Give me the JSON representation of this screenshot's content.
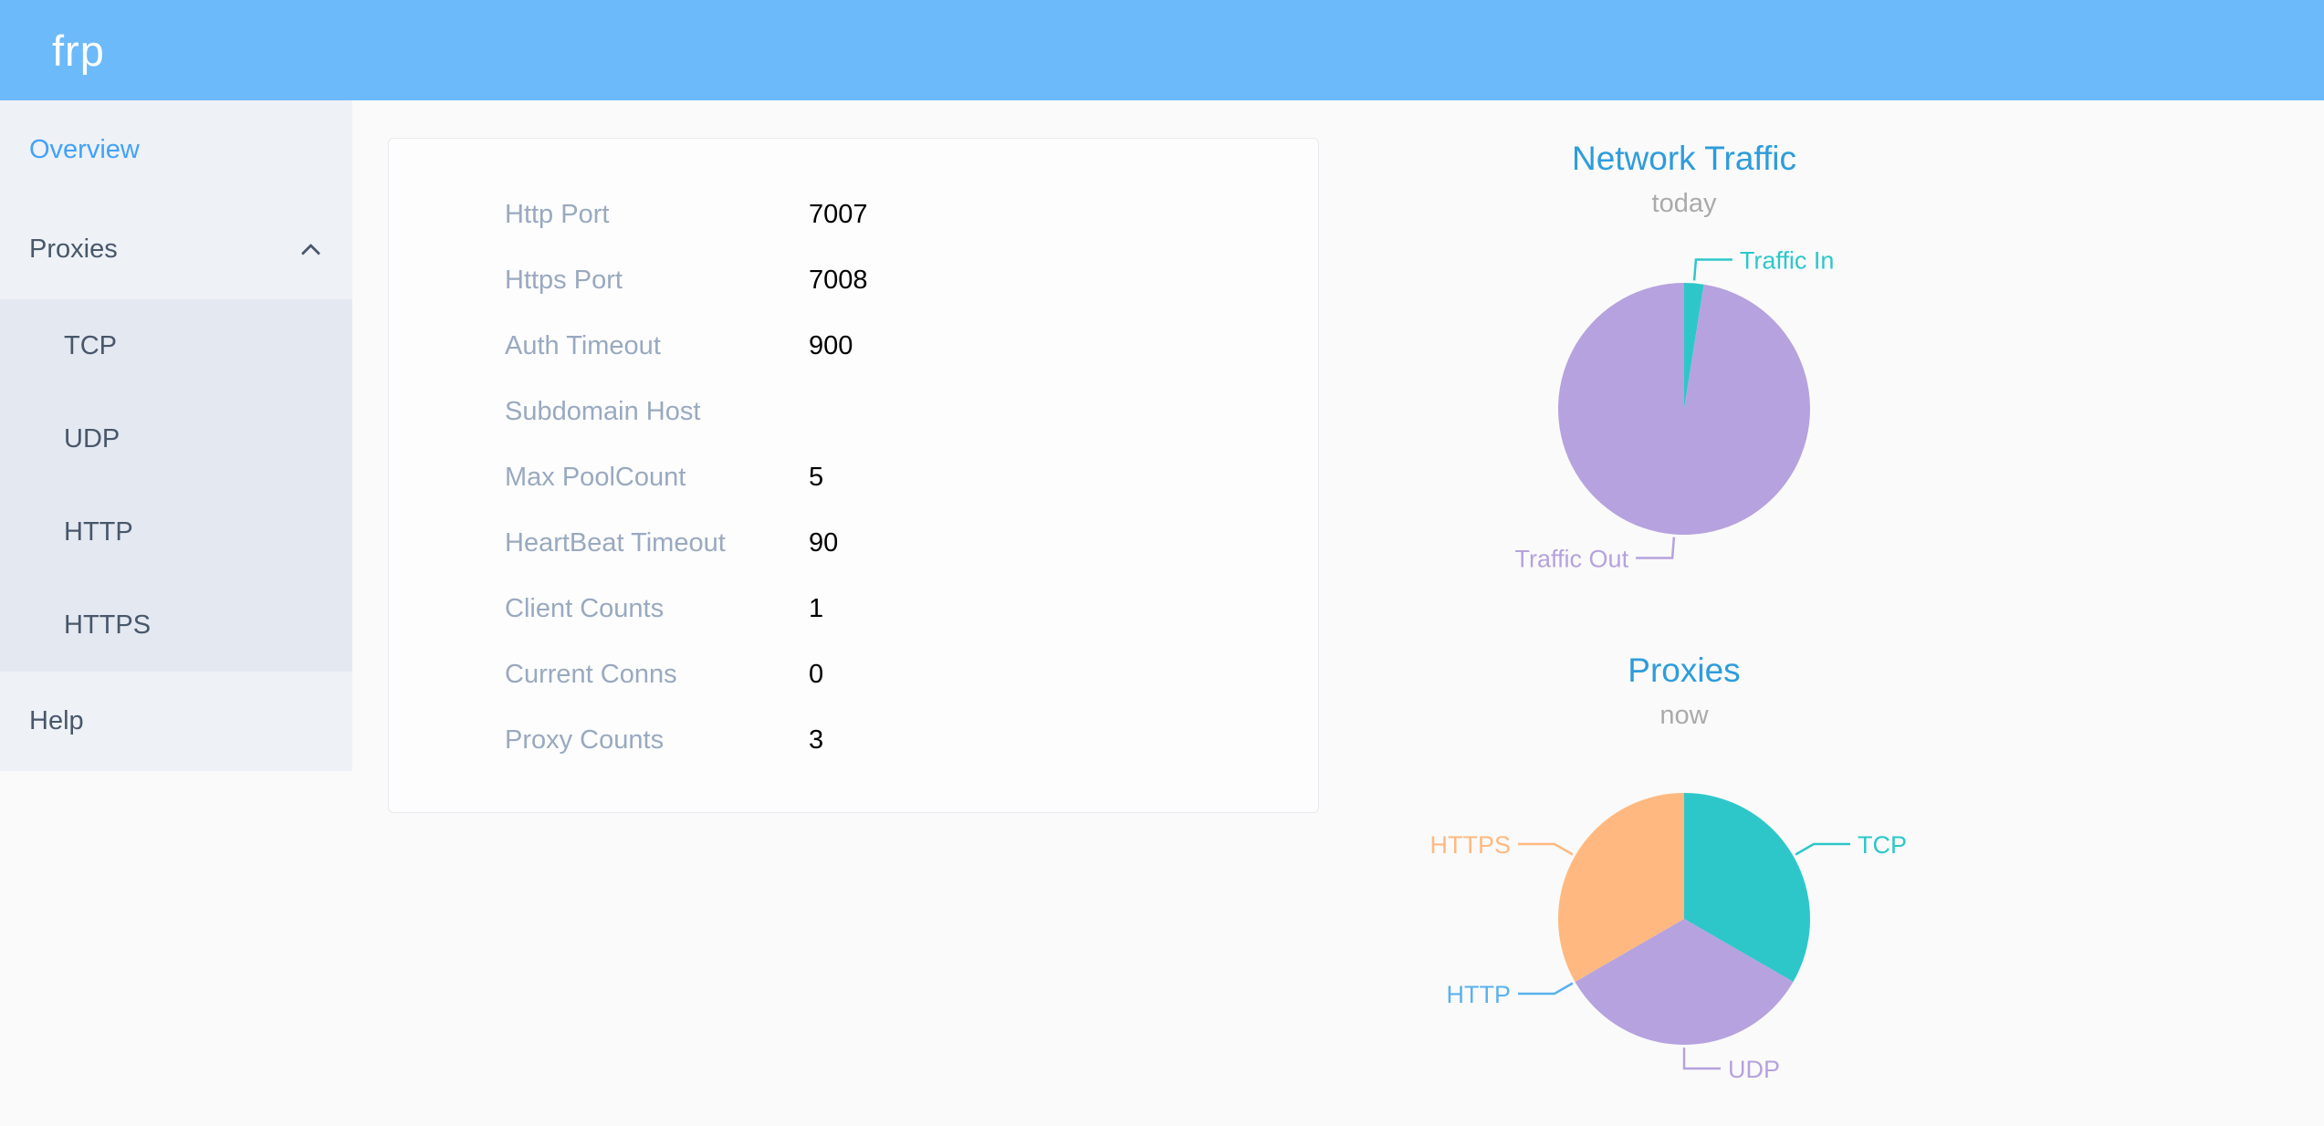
{
  "header": {
    "logo": "frp"
  },
  "colors": {
    "header_bg": "#6cbafa",
    "sidebar_bg": "#eef1f6",
    "submenu_bg": "#e4e8f1",
    "menu_text": "#48576a",
    "active_text": "#42a2f8",
    "page_bg": "#fafafa",
    "card_bg": "#fdfdfe",
    "card_border": "#e8e9ef",
    "label_gray": "#99a9bf",
    "value_black": "#000000",
    "chart_title": "#2d9cdb",
    "chart_subtitle": "#aaaaaa"
  },
  "sidebar": {
    "items": [
      {
        "label": "Overview",
        "active": true
      },
      {
        "label": "Proxies",
        "expanded": true,
        "children": [
          "TCP",
          "UDP",
          "HTTP",
          "HTTPS"
        ]
      },
      {
        "label": "Help"
      }
    ]
  },
  "server_info": {
    "rows": [
      {
        "label": "Http Port",
        "value": "7007"
      },
      {
        "label": "Https Port",
        "value": "7008"
      },
      {
        "label": "Auth Timeout",
        "value": "900"
      },
      {
        "label": "Subdomain Host",
        "value": ""
      },
      {
        "label": "Max PoolCount",
        "value": "5"
      },
      {
        "label": "HeartBeat Timeout",
        "value": "90"
      },
      {
        "label": "Client Counts",
        "value": "1"
      },
      {
        "label": "Current Conns",
        "value": "0"
      },
      {
        "label": "Proxy Counts",
        "value": "3"
      }
    ]
  },
  "chart_data": [
    {
      "type": "pie",
      "title": "Network Traffic",
      "subtitle": "today",
      "legend_position": "none",
      "start_angle_deg": 0,
      "clockwise": true,
      "slices": [
        {
          "name": "Traffic In",
          "value": 2.5,
          "color": "#2ec7c9",
          "label_side": "right"
        },
        {
          "name": "Traffic Out",
          "value": 97.5,
          "color": "#b6a2de",
          "label_side": "left"
        }
      ]
    },
    {
      "type": "pie",
      "title": "Proxies",
      "subtitle": "now",
      "legend_position": "none",
      "start_angle_deg": 0,
      "clockwise": true,
      "slices": [
        {
          "name": "TCP",
          "value": 1,
          "color": "#2ec7c9",
          "label_side": "right"
        },
        {
          "name": "UDP",
          "value": 1,
          "color": "#b6a2de",
          "label_side": "right"
        },
        {
          "name": "HTTP",
          "value": 0,
          "color": "#5ab1ef",
          "label_side": "left"
        },
        {
          "name": "HTTPS",
          "value": 1,
          "color": "#ffb980",
          "label_side": "left"
        }
      ]
    }
  ]
}
